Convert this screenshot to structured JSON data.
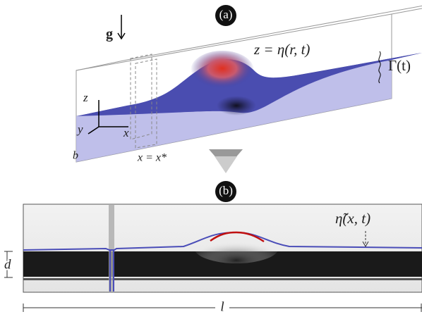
{
  "panel_a": {
    "label": "(a)",
    "gravity": "g",
    "surface": "z = η(r, t)",
    "forcing": "Γ(t)",
    "axis_z": "z",
    "axis_y": "y",
    "axis_x": "x",
    "width": "b",
    "section": "x = x*"
  },
  "panel_b": {
    "label": "(b)",
    "profile": "η̃(x, t)",
    "depth": "d",
    "length": "l"
  }
}
